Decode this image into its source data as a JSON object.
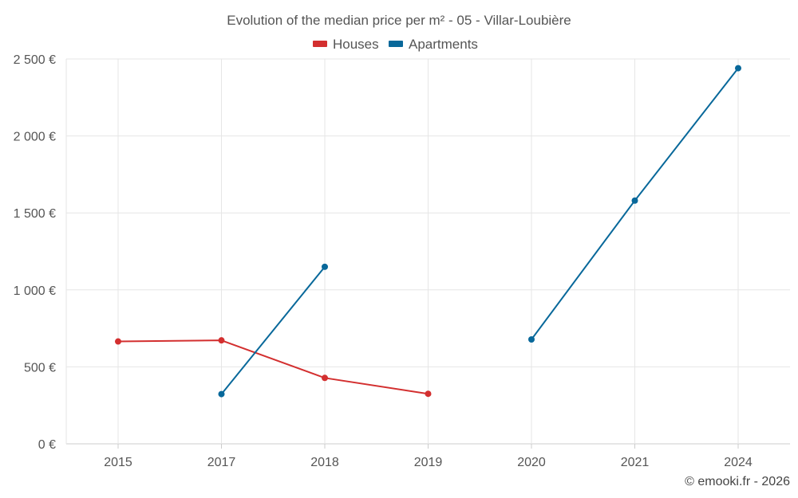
{
  "chart_data": {
    "type": "line",
    "title": "Evolution of the median price per m² - 05 - Villar-Loubière",
    "categories": [
      "2015",
      "2017",
      "2018",
      "2019",
      "2020",
      "2021",
      "2024"
    ],
    "series": [
      {
        "name": "Houses",
        "color": "#d32f2f",
        "values": [
          665,
          672,
          428,
          325,
          null,
          null,
          null
        ]
      },
      {
        "name": "Apartments",
        "color": "#08689a",
        "values": [
          null,
          323,
          1150,
          null,
          678,
          1580,
          2440
        ]
      }
    ],
    "ylim": [
      0,
      2500
    ],
    "yticks": [
      0,
      500,
      1000,
      1500,
      2000,
      2500
    ],
    "ytick_labels": [
      "0 €",
      "500 €",
      "1 000 €",
      "1 500 €",
      "2 000 €",
      "2 500 €"
    ],
    "xlabel": "",
    "ylabel": "",
    "grid": true,
    "legend_position": "top-center"
  },
  "credit": "© emooki.fr - 2026"
}
